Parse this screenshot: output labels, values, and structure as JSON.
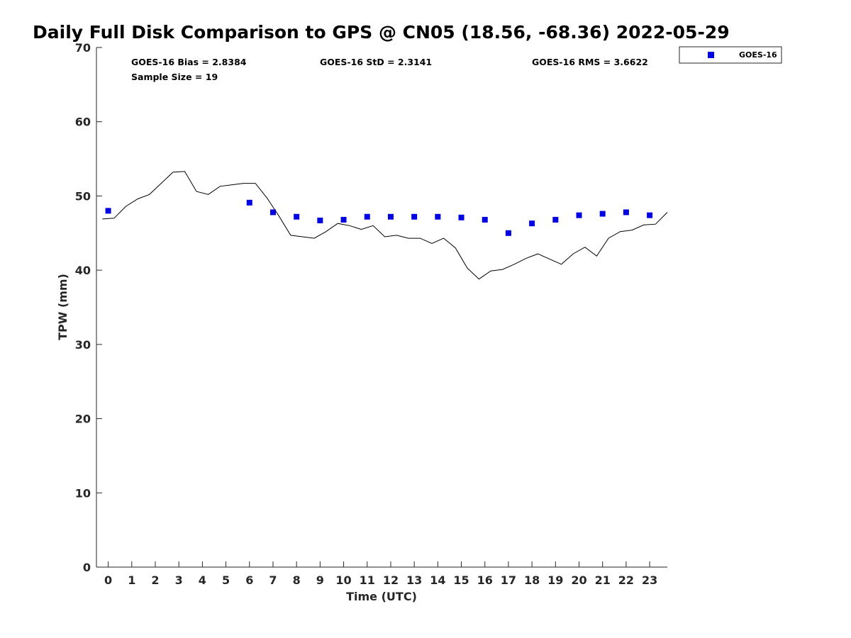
{
  "chart_data": {
    "type": "scatter",
    "title": "Daily Full Disk Comparison to GPS @ CN05 (18.56, -68.36) 2022-05-29",
    "xlabel": "Time (UTC)",
    "ylabel": "TPW (mm)",
    "xlim": [
      -0.5,
      23.75
    ],
    "ylim": [
      0,
      70
    ],
    "x_ticks": [
      0,
      1,
      2,
      3,
      4,
      5,
      6,
      7,
      8,
      9,
      10,
      11,
      12,
      13,
      14,
      15,
      16,
      17,
      18,
      19,
      20,
      21,
      22,
      23
    ],
    "y_ticks": [
      0,
      10,
      20,
      30,
      40,
      50,
      60,
      70
    ],
    "grid": false,
    "legend_position": "top-right, outside plot area",
    "stats": [
      "GOES-16 Bias = 2.8384",
      "GOES-16 StD = 2.3141",
      "GOES-16 RMS = 3.6622",
      "Sample Size = 19"
    ],
    "series": [
      {
        "name": "GOES-16",
        "kind": "scatter",
        "marker": "square",
        "color": "#0000e0",
        "x": [
          0,
          6,
          7,
          8,
          9,
          10,
          11,
          12,
          13,
          14,
          15,
          16,
          17,
          18,
          19,
          20,
          21,
          22,
          23
        ],
        "y": [
          48.0,
          49.1,
          47.8,
          47.2,
          46.7,
          46.8,
          47.2,
          47.2,
          47.2,
          47.2,
          47.1,
          46.8,
          45.0,
          46.3,
          46.8,
          47.4,
          47.6,
          47.8,
          47.4
        ]
      },
      {
        "kind": "line",
        "color": "#000000",
        "x": [
          -0.25,
          0.25,
          0.75,
          1.25,
          1.75,
          2.25,
          2.75,
          3.25,
          3.75,
          4.25,
          4.75,
          5.25,
          5.75,
          6.25,
          6.75,
          7.25,
          7.75,
          8.25,
          8.75,
          9.25,
          9.75,
          10.25,
          10.75,
          11.25,
          11.75,
          12.25,
          12.75,
          13.25,
          13.75,
          14.25,
          14.75,
          15.25,
          15.75,
          16.25,
          16.75,
          17.25,
          17.75,
          18.25,
          18.75,
          19.25,
          19.75,
          20.25,
          20.75,
          21.25,
          21.75,
          22.25,
          22.75,
          23.25,
          23.75
        ],
        "y": [
          46.9,
          47.0,
          48.6,
          49.6,
          50.2,
          51.7,
          53.2,
          53.3,
          50.6,
          50.2,
          51.3,
          51.5,
          51.7,
          51.7,
          49.7,
          47.3,
          44.7,
          44.5,
          44.3,
          45.2,
          46.3,
          46.0,
          45.5,
          46.0,
          44.5,
          44.7,
          44.3,
          44.3,
          43.6,
          44.3,
          43.0,
          40.3,
          38.8,
          39.9,
          40.1,
          40.8,
          41.6,
          42.2,
          41.5,
          40.8,
          42.2,
          43.1,
          41.9,
          44.3,
          45.2,
          45.4,
          46.1,
          46.2,
          47.8
        ]
      }
    ]
  }
}
